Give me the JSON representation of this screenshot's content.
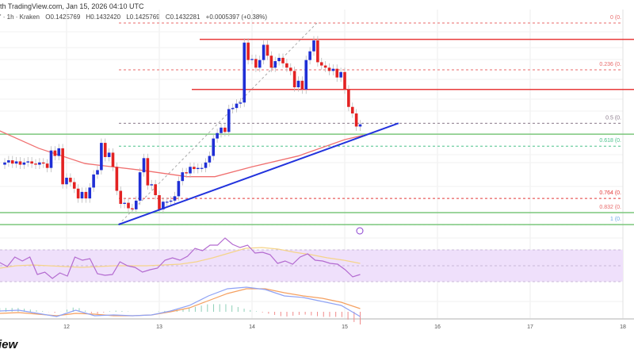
{
  "header": {
    "title": "th TradingView.com, Jan 15, 2026 04:10 UTC",
    "symbol": "' · 1h · Kraken",
    "open": "O0.1425769",
    "high": "H0.1432420",
    "low": "L0.1425769",
    "close": "C0.1432281",
    "change": "+0.0005397 (+0.38%)"
  },
  "logo": "iew",
  "colors": {
    "up": "#1f2fd6",
    "down": "#e32222",
    "ma": "#f07070",
    "trend": "#2233dd",
    "resist": "#e83a3a",
    "support": "#7cc77c",
    "rsi": "#b36ad0",
    "rsi_ma": "#f5d48a",
    "rsi_band": "#efe0fb",
    "macd": "#8ea2f5",
    "signal": "#f5a060"
  },
  "chart_data": {
    "type": "candlestick",
    "timeframe": "1h",
    "x_ticks": [
      "12",
      "13",
      "14",
      "15",
      "16",
      "17",
      "18"
    ],
    "x_tick_days": [
      12,
      13,
      14,
      15,
      16,
      17,
      18
    ],
    "last_candle_day": 15.1667,
    "candles_per_day": 24,
    "first_open": 0.1395,
    "closes": [
      0.1397,
      0.1399,
      0.1396,
      0.1398,
      0.1395,
      0.1397,
      0.1398,
      0.1396,
      0.1395,
      0.1397,
      0.1396,
      0.1392,
      0.1408,
      0.1403,
      0.141,
      0.1377,
      0.1383,
      0.1379,
      0.1373,
      0.1364,
      0.137,
      0.1364,
      0.1374,
      0.1386,
      0.139,
      0.1415,
      0.1402,
      0.1406,
      0.1393,
      0.1371,
      0.1359,
      0.136,
      0.1355,
      0.1354,
      0.1362,
      0.1388,
      0.1401,
      0.1376,
      0.1377,
      0.1367,
      0.1354,
      0.1361,
      0.1361,
      0.1362,
      0.1366,
      0.138,
      0.1388,
      0.1387,
      0.1393,
      0.1391,
      0.1392,
      0.1392,
      0.1397,
      0.1403,
      0.1419,
      0.1424,
      0.1429,
      0.1425,
      0.1446,
      0.1447,
      0.1451,
      0.1452,
      0.1507,
      0.1491,
      0.1492,
      0.1484,
      0.1491,
      0.1505,
      0.1495,
      0.1484,
      0.149,
      0.1493,
      0.1488,
      0.1484,
      0.1481,
      0.1466,
      0.1472,
      0.1464,
      0.1491,
      0.1499,
      0.1509,
      0.1489,
      0.1486,
      0.1484,
      0.1481,
      0.1483,
      0.1475,
      0.148,
      0.1464,
      0.1448,
      0.1442,
      0.143,
      0.1432
    ],
    "moving_average": [
      [
        11.28,
        0.1426
      ],
      [
        11.7,
        0.141
      ],
      [
        12.2,
        0.1396
      ],
      [
        12.8,
        0.139
      ],
      [
        13.3,
        0.1384
      ],
      [
        13.6,
        0.1384
      ],
      [
        14.0,
        0.1393
      ],
      [
        14.5,
        0.1403
      ],
      [
        15.0,
        0.1418
      ],
      [
        15.2,
        0.1422
      ]
    ],
    "fib_levels": [
      {
        "label": "0 (0.",
        "price": 0.1525,
        "color": "#e86a6a"
      },
      {
        "label": "0.236 (0.",
        "price": 0.1482,
        "color": "#e86a6a"
      },
      {
        "label": "0.5 (0.",
        "price": 0.1433,
        "color": "#8a7a8a"
      },
      {
        "label": "0.618 (0.",
        "price": 0.1412,
        "color": "#4cc28c"
      },
      {
        "label": "0.764 (0.",
        "price": 0.1364,
        "color": "#e33a3a"
      },
      {
        "label": "0.832 (0.",
        "price": 0.1351,
        "color": "#e86a6a"
      },
      {
        "label": "1 (0.",
        "price": 0.134,
        "color": "#6aa8e8"
      }
    ],
    "horizontal_lines": [
      {
        "price": 0.151,
        "kind": "resistance"
      },
      {
        "price": 0.1464,
        "kind": "resistance"
      },
      {
        "price": 0.1423,
        "kind": "support"
      },
      {
        "price": 0.1351,
        "kind": "support"
      },
      {
        "price": 0.134,
        "kind": "support"
      }
    ],
    "trend_line": [
      [
        12.56,
        0.134
      ],
      [
        15.58,
        0.1433
      ]
    ],
    "fib_diagonal": [
      [
        12.56,
        0.134
      ],
      [
        14.7,
        0.1525
      ]
    ],
    "rsi": {
      "band": [
        30,
        70
      ],
      "values": [
        54,
        49,
        61,
        56,
        61,
        39,
        42,
        34,
        41,
        37,
        61,
        57,
        59,
        40,
        38,
        39,
        55,
        50,
        48,
        42,
        45,
        47,
        57,
        60,
        57,
        62,
        72,
        69,
        76,
        76,
        85,
        77,
        73,
        76,
        66,
        67,
        64,
        53,
        56,
        52,
        61,
        65,
        57,
        56,
        53,
        52,
        45,
        36,
        39
      ],
      "ma": [
        47,
        50,
        51,
        50,
        49,
        48,
        49,
        50,
        50,
        50,
        51,
        52,
        55,
        60,
        66,
        72,
        73,
        71,
        67,
        64,
        60,
        57,
        53
      ]
    },
    "macd": {
      "macd": [
        1,
        2,
        -2,
        -6,
        2,
        -5,
        -4,
        -5,
        -4,
        1,
        8,
        20,
        29,
        31,
        28,
        20,
        18,
        13,
        8,
        -6
      ],
      "signal": [
        -2,
        -1,
        -3,
        -5,
        -2,
        -3,
        -5,
        -5,
        -4,
        0,
        5,
        14,
        23,
        29,
        29,
        24,
        20,
        17,
        12,
        4
      ]
    }
  }
}
